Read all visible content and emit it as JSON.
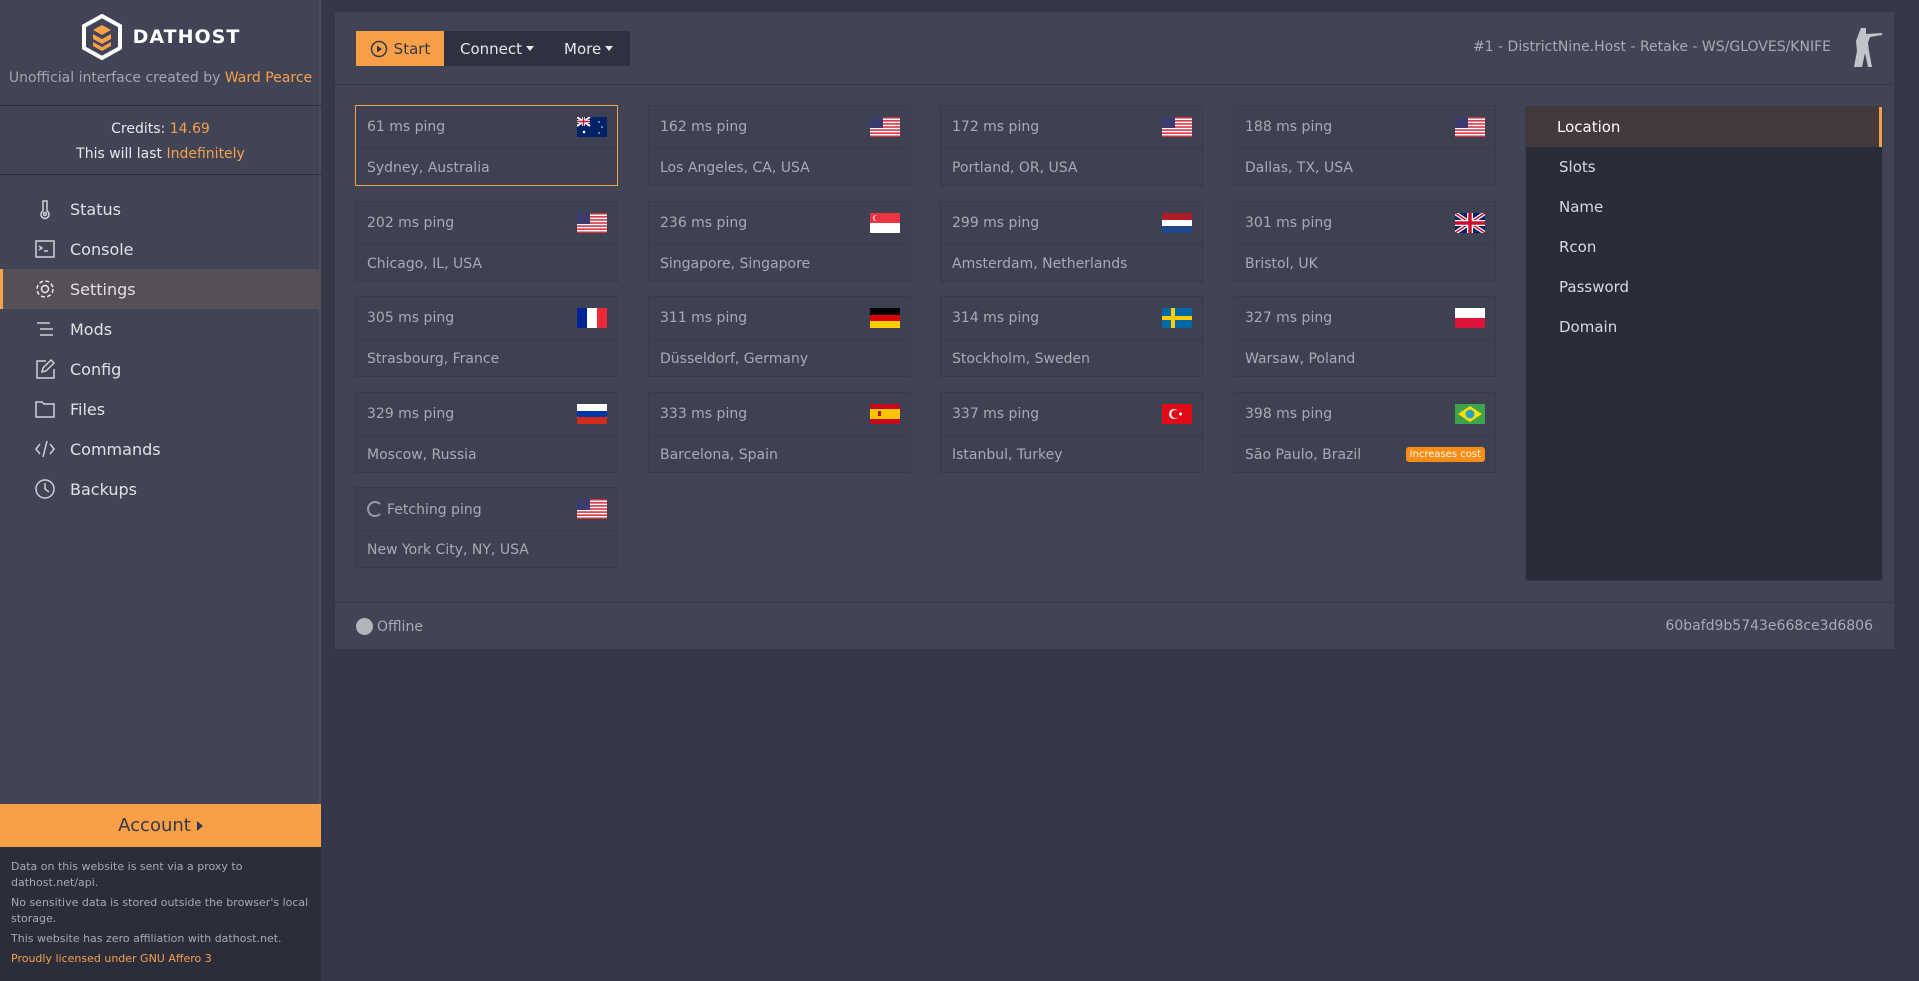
{
  "brand": {
    "name": "DATHOST",
    "subtitle_prefix": "Unofficial interface created by ",
    "author": "Ward Pearce",
    "accent": "#f7a04b"
  },
  "credits": {
    "label": "Credits: ",
    "value": "14.69",
    "last_label": "This will last ",
    "last_value": "Indefinitely"
  },
  "sidebar": {
    "items": [
      {
        "label": "Status",
        "icon": "thermometer-icon"
      },
      {
        "label": "Console",
        "icon": "terminal-icon"
      },
      {
        "label": "Settings",
        "icon": "gear-icon",
        "active": true
      },
      {
        "label": "Mods",
        "icon": "list-icon"
      },
      {
        "label": "Config",
        "icon": "edit-icon"
      },
      {
        "label": "Files",
        "icon": "folder-icon"
      },
      {
        "label": "Commands",
        "icon": "code-icon"
      },
      {
        "label": "Backups",
        "icon": "clock-icon"
      }
    ],
    "account_label": "Account",
    "footer": [
      "Data on this website is sent via a proxy to dathost.net/api.",
      "No sensitive data is stored outside the browser's local storage.",
      "This website has zero affiliation with dathost.net."
    ],
    "license": "Proudly licensed under GNU Affero 3"
  },
  "toolbar": {
    "start": "Start",
    "connect": "Connect",
    "more": "More",
    "server_title": "#1 - DistrictNine.Host - Retake - WS/GLOVES/KNIFE"
  },
  "locations": [
    {
      "ping": "61 ms ping",
      "city": "Sydney, Australia",
      "flag": "au",
      "selected": true
    },
    {
      "ping": "162 ms ping",
      "city": "Los Angeles, CA, USA",
      "flag": "us"
    },
    {
      "ping": "172 ms ping",
      "city": "Portland, OR, USA",
      "flag": "us"
    },
    {
      "ping": "188 ms ping",
      "city": "Dallas, TX, USA",
      "flag": "us"
    },
    {
      "ping": "202 ms ping",
      "city": "Chicago, IL, USA",
      "flag": "us"
    },
    {
      "ping": "236 ms ping",
      "city": "Singapore, Singapore",
      "flag": "sg"
    },
    {
      "ping": "299 ms ping",
      "city": "Amsterdam, Netherlands",
      "flag": "nl"
    },
    {
      "ping": "301 ms ping",
      "city": "Bristol, UK",
      "flag": "gb"
    },
    {
      "ping": "305 ms ping",
      "city": "Strasbourg, France",
      "flag": "fr"
    },
    {
      "ping": "311 ms ping",
      "city": "Düsseldorf, Germany",
      "flag": "de"
    },
    {
      "ping": "314 ms ping",
      "city": "Stockholm, Sweden",
      "flag": "se"
    },
    {
      "ping": "327 ms ping",
      "city": "Warsaw, Poland",
      "flag": "pl"
    },
    {
      "ping": "329 ms ping",
      "city": "Moscow, Russia",
      "flag": "ru"
    },
    {
      "ping": "333 ms ping",
      "city": "Barcelona, Spain",
      "flag": "es"
    },
    {
      "ping": "337 ms ping",
      "city": "Istanbul, Turkey",
      "flag": "tr"
    },
    {
      "ping": "398 ms ping",
      "city": "São Paulo, Brazil",
      "flag": "br",
      "badge": "Increases cost"
    },
    {
      "ping": "Fetching ping",
      "city": "New York City, NY, USA",
      "flag": "us",
      "loading": true
    }
  ],
  "settings_menu": [
    {
      "label": "Location",
      "active": true
    },
    {
      "label": "Slots"
    },
    {
      "label": "Name"
    },
    {
      "label": "Rcon"
    },
    {
      "label": "Password"
    },
    {
      "label": "Domain"
    }
  ],
  "status": {
    "label": "Offline",
    "server_id": "60bafd9b5743e668ce3d6806"
  }
}
